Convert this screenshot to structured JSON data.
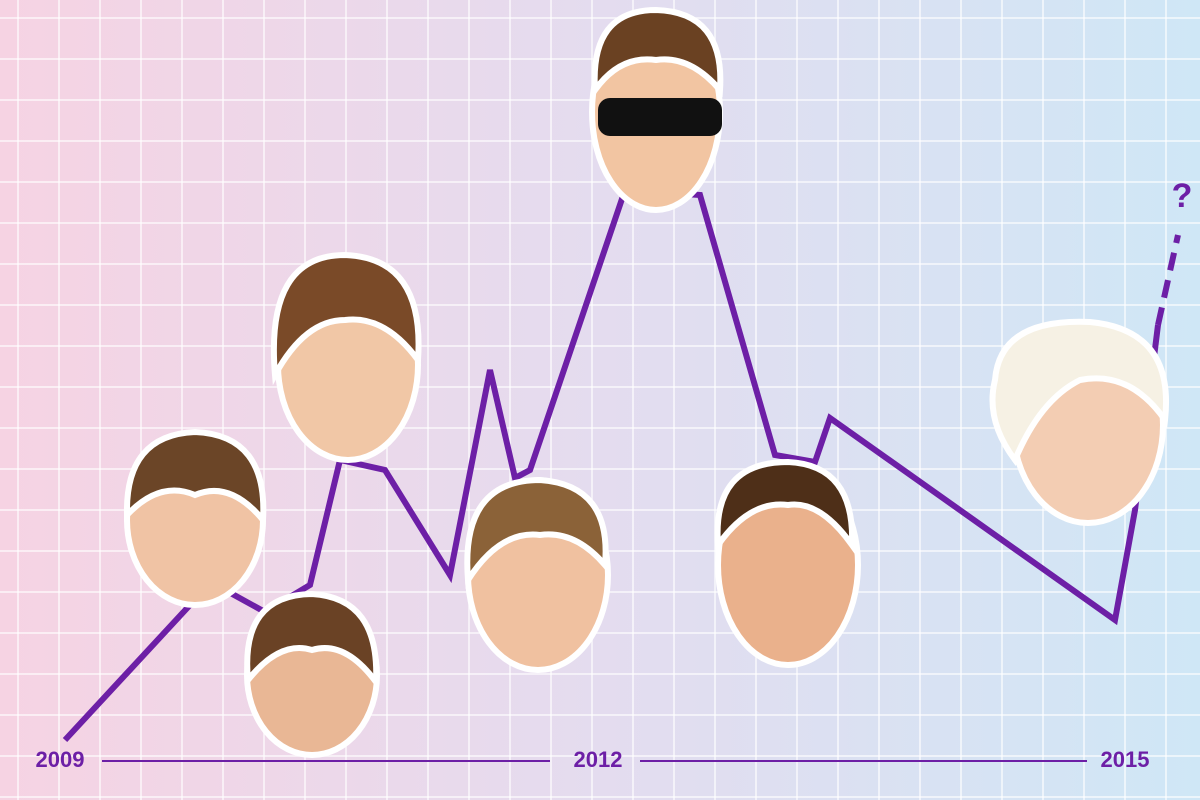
{
  "timeline": {
    "labels": [
      "2009",
      "2012",
      "2015"
    ]
  },
  "annotation": "?"
}
